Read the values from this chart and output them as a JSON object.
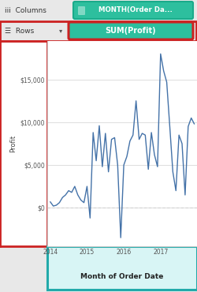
{
  "title_columns": "MONTH(Order Da...",
  "title_rows": "SUM(Profit)",
  "xlabel": "Month of Order Date",
  "ylabel": "Profit",
  "line_color": "#4472a8",
  "fig_bg": "#e8e8e8",
  "header_bg": "#efefef",
  "plot_bg": "#ffffff",
  "ylim": [
    -4500,
    19500
  ],
  "yticks": [
    0,
    5000,
    10000,
    15000
  ],
  "ytick_labels": [
    "$0",
    "$5,000",
    "$10,000",
    "$15,000"
  ],
  "col_pill_color": "#2dbf9e",
  "col_pill_border": "#1aaa8a",
  "row_pill_color": "#2dbf9e",
  "row_pill_border": "#cc2222",
  "row_header_border": "#cc2222",
  "left_box_border": "#cc2222",
  "bottom_box_border": "#22aaaa",
  "bottom_box_bg": "#d8f5f5",
  "grid_color": "#d0d0d0",
  "zero_line_color": "#bbbbbb",
  "profit_data": [
    700,
    500,
    300,
    600,
    1200,
    1500,
    2000,
    1800,
    2500,
    1500,
    900,
    600,
    2500,
    700,
    8800,
    5500,
    9600,
    4800,
    8700,
    4200,
    8000,
    8200,
    5000,
    3500,
    5000,
    6000,
    7800,
    8500,
    12500,
    8000,
    8700,
    8500,
    4500,
    8800,
    6200,
    4800,
    18000,
    16000,
    14700,
    9500,
    4200,
    2000,
    8500,
    7500,
    1500,
    9500,
    10500,
    9800
  ],
  "neg_indices": [
    1,
    13,
    23
  ],
  "neg_values": [
    200,
    -1200,
    -3500
  ]
}
